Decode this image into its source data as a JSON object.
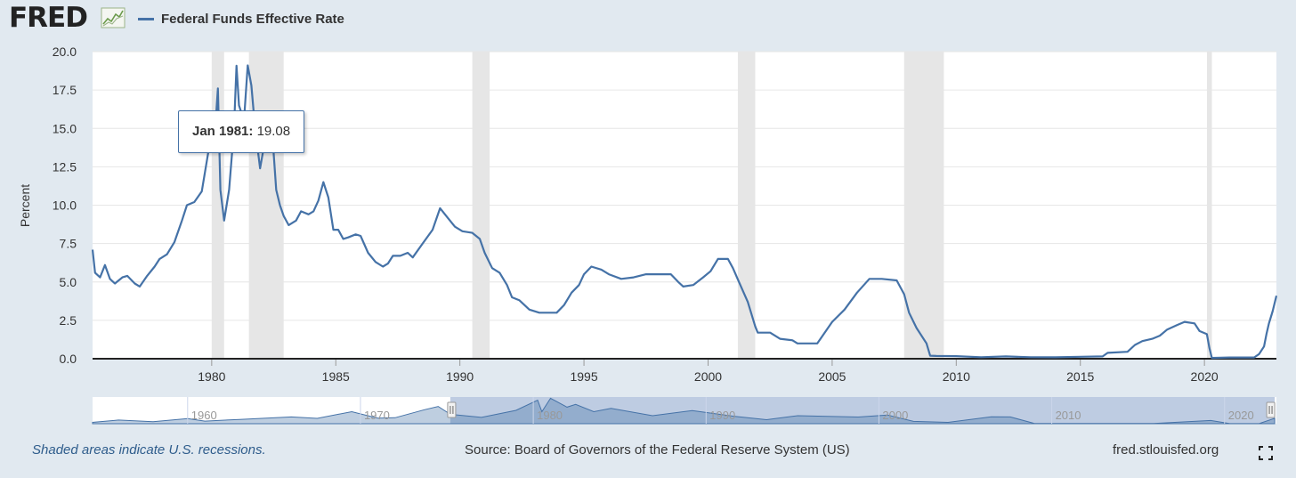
{
  "header": {
    "logo_text": "FRED",
    "logo_icon": "line-chart-icon",
    "legend_label": "Federal Funds Effective Rate"
  },
  "tooltip": {
    "date": "Jan 1981:",
    "value": "19.08"
  },
  "footer": {
    "recession_note": "Shaded areas indicate U.S. recessions.",
    "source": "Source: Board of Governors of the Federal Reserve System (US)",
    "url": "fred.stlouisfed.org",
    "fullscreen_icon": "fullscreen-icon"
  },
  "colors": {
    "series": "#4572a7",
    "recession": "#e6e6e6",
    "background": "#e1e9f0",
    "plot_bg": "#ffffff",
    "navigator_mask": "#b3c3dd"
  },
  "chart_data": {
    "type": "line",
    "title": "Federal Funds Effective Rate",
    "ylabel": "Percent",
    "xlabel": "",
    "xlim": [
      1975.2,
      2022.9
    ],
    "ylim": [
      0,
      20
    ],
    "yticks": [
      "0.0",
      "2.5",
      "5.0",
      "7.5",
      "10.0",
      "12.5",
      "15.0",
      "17.5",
      "20.0"
    ],
    "xticks": [
      "1980",
      "1985",
      "1990",
      "1995",
      "2000",
      "2005",
      "2010",
      "2015",
      "2020"
    ],
    "recessions": [
      [
        1980.0,
        1980.5
      ],
      [
        1981.5,
        1982.9
      ],
      [
        1990.5,
        1991.2
      ],
      [
        2001.2,
        2001.9
      ],
      [
        2007.9,
        2009.5
      ],
      [
        2020.1,
        2020.3
      ]
    ],
    "series": [
      {
        "name": "Federal Funds Effective Rate",
        "points": [
          [
            1975.2,
            7.1
          ],
          [
            1975.3,
            5.6
          ],
          [
            1975.5,
            5.3
          ],
          [
            1975.7,
            6.1
          ],
          [
            1975.9,
            5.2
          ],
          [
            1976.1,
            4.9
          ],
          [
            1976.4,
            5.3
          ],
          [
            1976.6,
            5.4
          ],
          [
            1976.9,
            4.9
          ],
          [
            1977.1,
            4.7
          ],
          [
            1977.4,
            5.4
          ],
          [
            1977.7,
            6.0
          ],
          [
            1977.9,
            6.5
          ],
          [
            1978.2,
            6.8
          ],
          [
            1978.5,
            7.6
          ],
          [
            1978.8,
            9.0
          ],
          [
            1979.0,
            10.0
          ],
          [
            1979.3,
            10.2
          ],
          [
            1979.6,
            10.9
          ],
          [
            1979.9,
            13.8
          ],
          [
            1980.1,
            14.0
          ],
          [
            1980.25,
            17.6
          ],
          [
            1980.35,
            11.0
          ],
          [
            1980.5,
            9.0
          ],
          [
            1980.7,
            11.0
          ],
          [
            1980.9,
            15.0
          ],
          [
            1981.0,
            19.08
          ],
          [
            1981.1,
            16.5
          ],
          [
            1981.3,
            15.5
          ],
          [
            1981.45,
            19.1
          ],
          [
            1981.6,
            17.8
          ],
          [
            1981.75,
            15.0
          ],
          [
            1981.95,
            12.4
          ],
          [
            1982.2,
            14.7
          ],
          [
            1982.45,
            14.5
          ],
          [
            1982.6,
            11.0
          ],
          [
            1982.75,
            10.0
          ],
          [
            1982.9,
            9.3
          ],
          [
            1983.1,
            8.7
          ],
          [
            1983.4,
            9.0
          ],
          [
            1983.6,
            9.6
          ],
          [
            1983.9,
            9.4
          ],
          [
            1984.1,
            9.6
          ],
          [
            1984.3,
            10.3
          ],
          [
            1984.5,
            11.5
          ],
          [
            1984.7,
            10.5
          ],
          [
            1984.9,
            8.4
          ],
          [
            1985.1,
            8.4
          ],
          [
            1985.3,
            7.8
          ],
          [
            1985.5,
            7.9
          ],
          [
            1985.8,
            8.1
          ],
          [
            1986.0,
            8.0
          ],
          [
            1986.3,
            6.9
          ],
          [
            1986.6,
            6.3
          ],
          [
            1986.9,
            6.0
          ],
          [
            1987.1,
            6.2
          ],
          [
            1987.3,
            6.7
          ],
          [
            1987.6,
            6.7
          ],
          [
            1987.9,
            6.9
          ],
          [
            1988.1,
            6.6
          ],
          [
            1988.5,
            7.5
          ],
          [
            1988.9,
            8.4
          ],
          [
            1989.2,
            9.8
          ],
          [
            1989.5,
            9.2
          ],
          [
            1989.8,
            8.6
          ],
          [
            1990.1,
            8.3
          ],
          [
            1990.5,
            8.2
          ],
          [
            1990.8,
            7.8
          ],
          [
            1991.0,
            6.9
          ],
          [
            1991.3,
            5.9
          ],
          [
            1991.6,
            5.6
          ],
          [
            1991.9,
            4.8
          ],
          [
            1992.1,
            4.0
          ],
          [
            1992.4,
            3.8
          ],
          [
            1992.8,
            3.2
          ],
          [
            1993.2,
            3.0
          ],
          [
            1993.6,
            3.0
          ],
          [
            1993.9,
            3.0
          ],
          [
            1994.2,
            3.5
          ],
          [
            1994.5,
            4.3
          ],
          [
            1994.8,
            4.8
          ],
          [
            1995.0,
            5.5
          ],
          [
            1995.3,
            6.0
          ],
          [
            1995.7,
            5.8
          ],
          [
            1996.0,
            5.5
          ],
          [
            1996.5,
            5.2
          ],
          [
            1997.0,
            5.3
          ],
          [
            1997.5,
            5.5
          ],
          [
            1998.0,
            5.5
          ],
          [
            1998.5,
            5.5
          ],
          [
            1998.8,
            5.0
          ],
          [
            1999.0,
            4.7
          ],
          [
            1999.4,
            4.8
          ],
          [
            1999.8,
            5.3
          ],
          [
            2000.1,
            5.7
          ],
          [
            2000.4,
            6.5
          ],
          [
            2000.8,
            6.5
          ],
          [
            2001.0,
            5.9
          ],
          [
            2001.3,
            4.8
          ],
          [
            2001.6,
            3.7
          ],
          [
            2001.9,
            2.1
          ],
          [
            2002.0,
            1.7
          ],
          [
            2002.5,
            1.7
          ],
          [
            2002.9,
            1.3
          ],
          [
            2003.4,
            1.2
          ],
          [
            2003.6,
            1.0
          ],
          [
            2004.4,
            1.0
          ],
          [
            2005.0,
            2.4
          ],
          [
            2005.5,
            3.2
          ],
          [
            2006.0,
            4.3
          ],
          [
            2006.5,
            5.2
          ],
          [
            2007.0,
            5.2
          ],
          [
            2007.6,
            5.1
          ],
          [
            2007.9,
            4.2
          ],
          [
            2008.1,
            3.0
          ],
          [
            2008.4,
            2.0
          ],
          [
            2008.8,
            1.0
          ],
          [
            2008.95,
            0.2
          ],
          [
            2009.2,
            0.18
          ],
          [
            2010.0,
            0.17
          ],
          [
            2011.0,
            0.1
          ],
          [
            2012.0,
            0.15
          ],
          [
            2013.0,
            0.1
          ],
          [
            2014.0,
            0.09
          ],
          [
            2015.0,
            0.13
          ],
          [
            2015.9,
            0.15
          ],
          [
            2016.1,
            0.38
          ],
          [
            2016.9,
            0.45
          ],
          [
            2017.2,
            0.9
          ],
          [
            2017.5,
            1.15
          ],
          [
            2017.9,
            1.3
          ],
          [
            2018.2,
            1.5
          ],
          [
            2018.5,
            1.9
          ],
          [
            2018.9,
            2.2
          ],
          [
            2019.2,
            2.4
          ],
          [
            2019.6,
            2.3
          ],
          [
            2019.8,
            1.8
          ],
          [
            2020.1,
            1.6
          ],
          [
            2020.2,
            0.7
          ],
          [
            2020.3,
            0.05
          ],
          [
            2021.0,
            0.08
          ],
          [
            2022.0,
            0.08
          ],
          [
            2022.2,
            0.3
          ],
          [
            2022.4,
            0.8
          ],
          [
            2022.5,
            1.6
          ],
          [
            2022.6,
            2.3
          ],
          [
            2022.75,
            3.1
          ],
          [
            2022.9,
            4.1
          ]
        ]
      }
    ],
    "navigator": {
      "xlim": [
        1954.5,
        2023.0
      ],
      "ticks": [
        "1960",
        "1970",
        "1980",
        "1990",
        "2000",
        "2010",
        "2020"
      ],
      "selection": [
        1975.2,
        2022.9
      ],
      "points": [
        [
          1954.5,
          1.0
        ],
        [
          1956.0,
          2.7
        ],
        [
          1958.0,
          1.5
        ],
        [
          1960.0,
          3.8
        ],
        [
          1961.0,
          1.9
        ],
        [
          1963.0,
          3.2
        ],
        [
          1966.0,
          5.1
        ],
        [
          1967.5,
          4.0
        ],
        [
          1969.5,
          9.0
        ],
        [
          1971.0,
          4.2
        ],
        [
          1972.0,
          4.5
        ],
        [
          1973.7,
          10.5
        ],
        [
          1974.5,
          12.9
        ],
        [
          1975.2,
          7.1
        ],
        [
          1977.0,
          4.7
        ],
        [
          1979.0,
          10.0
        ],
        [
          1980.25,
          17.6
        ],
        [
          1980.5,
          9.0
        ],
        [
          1981.0,
          19.08
        ],
        [
          1981.95,
          12.4
        ],
        [
          1982.45,
          14.5
        ],
        [
          1983.5,
          9.0
        ],
        [
          1984.5,
          11.5
        ],
        [
          1986.9,
          6.0
        ],
        [
          1989.2,
          9.8
        ],
        [
          1991.6,
          5.6
        ],
        [
          1993.5,
          3.0
        ],
        [
          1995.3,
          6.0
        ],
        [
          1998.8,
          5.0
        ],
        [
          2000.5,
          6.5
        ],
        [
          2002.0,
          1.7
        ],
        [
          2004.0,
          1.0
        ],
        [
          2006.5,
          5.2
        ],
        [
          2007.6,
          5.1
        ],
        [
          2009.0,
          0.2
        ],
        [
          2015.9,
          0.15
        ],
        [
          2019.2,
          2.4
        ],
        [
          2020.3,
          0.05
        ],
        [
          2022.0,
          0.08
        ],
        [
          2022.9,
          4.1
        ]
      ]
    }
  }
}
